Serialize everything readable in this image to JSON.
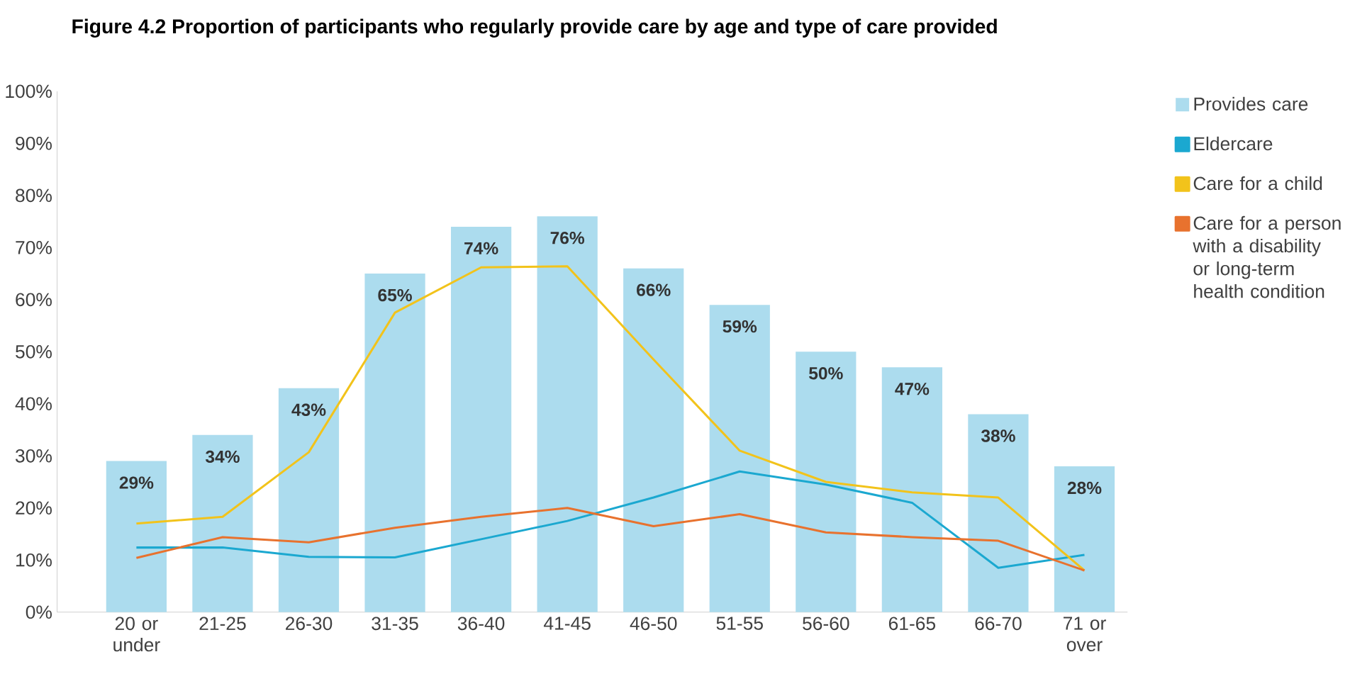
{
  "chart_data": {
    "type": "bar",
    "title": "Figure 4.2  Proportion of participants who regularly provide care by age and type of care provided",
    "categories": [
      "20 or under",
      "21-25",
      "26-30",
      "31-35",
      "36-40",
      "41-45",
      "46-50",
      "51-55",
      "56-60",
      "61-65",
      "66-70",
      "71 or over"
    ],
    "series": [
      {
        "name": "Provides care",
        "color": "#acdcee",
        "values": [
          29,
          34,
          43,
          65,
          74,
          76,
          66,
          59,
          50,
          47,
          38,
          28
        ],
        "value_labels": [
          "29%",
          "34%",
          "43%",
          "65%",
          "74%",
          "76%",
          "66%",
          "59%",
          "50%",
          "47%",
          "38%",
          "28%"
        ]
      },
      {
        "name": "Eldercare",
        "type": "line",
        "color": "#1ba8d0",
        "values": [
          12.4,
          12.4,
          10.6,
          10.5,
          14,
          17.5,
          22,
          27,
          24.5,
          21,
          8.5,
          11
        ]
      },
      {
        "name": "Care for a child",
        "type": "line",
        "color": "#f2c31b",
        "values": [
          17,
          18.3,
          30.7,
          57.5,
          66.2,
          66.4,
          48.5,
          31,
          25,
          23,
          22,
          8
        ]
      },
      {
        "name": "Care for a person with a disability or long-term health condition",
        "type": "line",
        "color": "#e8722e",
        "values": [
          10.4,
          14.4,
          13.4,
          16.2,
          18.3,
          20,
          16.5,
          18.8,
          15.3,
          14.4,
          13.7,
          8
        ]
      }
    ],
    "ylim": [
      0,
      100
    ],
    "yticks": [
      {
        "value": 0,
        "label": "0%"
      },
      {
        "value": 10,
        "label": "10%"
      },
      {
        "value": 20,
        "label": "20%"
      },
      {
        "value": 30,
        "label": "30%"
      },
      {
        "value": 40,
        "label": "40%"
      },
      {
        "value": 50,
        "label": "50%"
      },
      {
        "value": 60,
        "label": "60%"
      },
      {
        "value": 70,
        "label": "70%"
      },
      {
        "value": 80,
        "label": "80%"
      },
      {
        "value": 90,
        "label": "90%"
      },
      {
        "value": 100,
        "label": "100%"
      }
    ],
    "legend": "right"
  }
}
